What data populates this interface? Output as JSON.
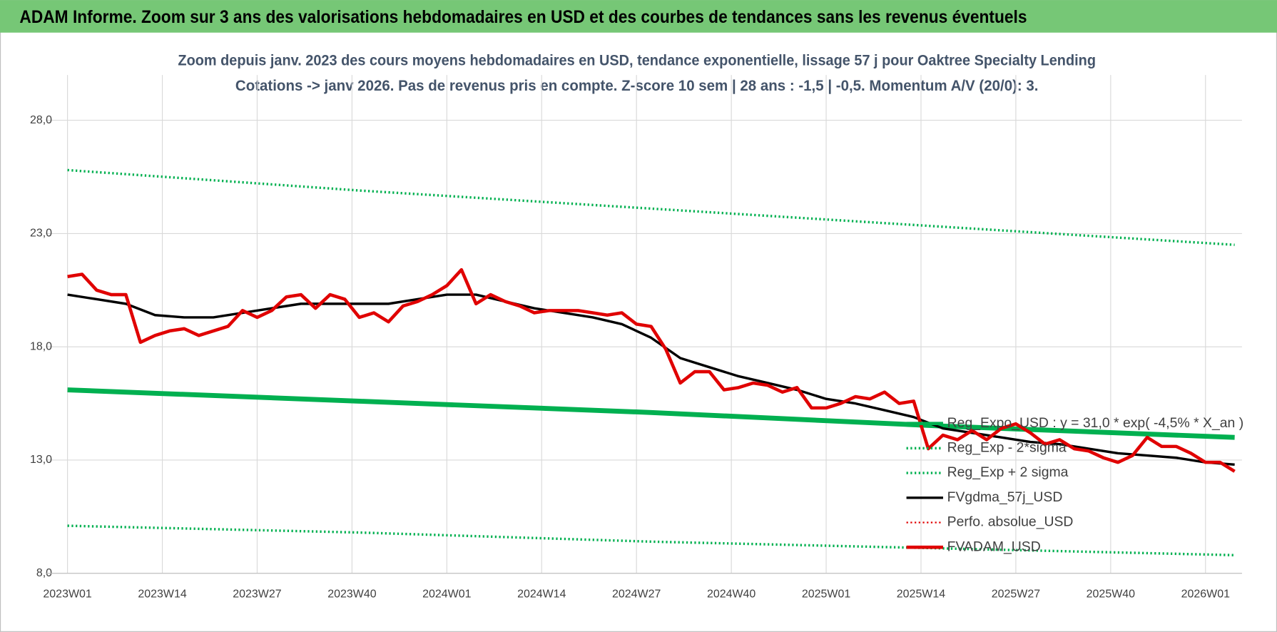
{
  "header": "ADAM Informe. Zoom sur 3 ans des valorisations hebdomadaires en USD et des courbes de tendances sans les revenus éventuels",
  "chart_data": {
    "type": "line",
    "title": "Zoom depuis janv. 2023 des cours moyens hebdomadaires en USD, tendance exponentielle, lissage 57 j pour Oaktree Specialty Lending",
    "subtitle": "Cotations -> janv 2026. Pas de revenus pris en compte. Z-score 10 sem | 28 ans : -1,5 | -0,5. Momentum A/V (20/0): 3.",
    "xlim": [
      -3,
      161
    ],
    "xticks": [
      {
        "value": 0,
        "label": "2023W01"
      },
      {
        "value": 13,
        "label": "2023W14"
      },
      {
        "value": 26,
        "label": "2023W27"
      },
      {
        "value": 39,
        "label": "2023W40"
      },
      {
        "value": 52,
        "label": "2024W01"
      },
      {
        "value": 65,
        "label": "2024W14"
      },
      {
        "value": 78,
        "label": "2024W27"
      },
      {
        "value": 91,
        "label": "2024W40"
      },
      {
        "value": 104,
        "label": "2025W01"
      },
      {
        "value": 117,
        "label": "2025W14"
      },
      {
        "value": 130,
        "label": "2025W27"
      },
      {
        "value": 143,
        "label": "2025W40"
      },
      {
        "value": 156,
        "label": "2026W01"
      }
    ],
    "ylim": [
      8,
      30
    ],
    "yticks": [
      {
        "value": 8,
        "label": "8,0"
      },
      {
        "value": 13,
        "label": "13,0"
      },
      {
        "value": 18,
        "label": "18,0"
      },
      {
        "value": 23,
        "label": "23,0"
      },
      {
        "value": 28,
        "label": "28,0"
      }
    ],
    "grid": true,
    "legend": "bottom-right",
    "series": [
      {
        "name": "Reg_Expo_USD : y = 31,0 * exp( -4,5% * X_an )",
        "color": "#00b050",
        "style": "solid",
        "width": 6,
        "x": [
          0,
          40,
          80,
          120,
          160
        ],
        "values": [
          16.1,
          15.6,
          15.1,
          14.5,
          14.0
        ]
      },
      {
        "name": "Reg_Exp - 2*sigma",
        "color": "#00b050",
        "style": "dotted",
        "width": 3,
        "x": [
          0,
          40,
          80,
          120,
          160
        ],
        "values": [
          10.1,
          9.8,
          9.4,
          9.1,
          8.8
        ]
      },
      {
        "name": "Reg_Exp + 2 sigma",
        "color": "#00b050",
        "style": "dotted",
        "width": 3,
        "x": [
          0,
          40,
          80,
          120,
          160
        ],
        "values": [
          25.8,
          24.9,
          24.1,
          23.3,
          22.5
        ]
      },
      {
        "name": "FVgdma_57j_USD",
        "color": "#000000",
        "style": "solid",
        "width": 3,
        "x": [
          0,
          4,
          8,
          12,
          16,
          20,
          24,
          28,
          32,
          36,
          40,
          44,
          48,
          52,
          56,
          60,
          64,
          68,
          72,
          76,
          80,
          84,
          88,
          92,
          96,
          100,
          104,
          108,
          112,
          116,
          120,
          124,
          128,
          132,
          136,
          140,
          144,
          148,
          152,
          156,
          160
        ],
        "values": [
          20.3,
          20.1,
          19.9,
          19.4,
          19.3,
          19.3,
          19.5,
          19.7,
          19.9,
          19.9,
          19.9,
          19.9,
          20.1,
          20.3,
          20.3,
          20.0,
          19.7,
          19.5,
          19.3,
          19.0,
          18.4,
          17.5,
          17.1,
          16.7,
          16.4,
          16.1,
          15.7,
          15.5,
          15.2,
          14.9,
          14.4,
          14.2,
          14.0,
          13.8,
          13.7,
          13.5,
          13.3,
          13.2,
          13.1,
          12.9,
          12.8
        ]
      },
      {
        "name": "Perfo. absolue_USD",
        "color": "#e00000",
        "style": "dotted",
        "width": 2,
        "x": [],
        "values": []
      },
      {
        "name": "FVADAM_USD",
        "color": "#e00000",
        "style": "solid",
        "width": 4,
        "x": [
          0,
          2,
          4,
          6,
          8,
          10,
          12,
          14,
          16,
          18,
          20,
          22,
          24,
          26,
          28,
          30,
          32,
          34,
          36,
          38,
          40,
          42,
          44,
          46,
          48,
          50,
          52,
          54,
          56,
          58,
          60,
          62,
          64,
          66,
          68,
          70,
          72,
          74,
          76,
          78,
          80,
          82,
          84,
          86,
          88,
          90,
          92,
          94,
          96,
          98,
          100,
          102,
          104,
          106,
          108,
          110,
          112,
          114,
          116,
          118,
          120,
          122,
          124,
          126,
          128,
          130,
          132,
          134,
          136,
          138,
          140,
          142,
          144,
          146,
          148,
          150,
          152,
          154,
          156,
          158,
          160
        ],
        "values": [
          21.1,
          21.2,
          20.5,
          20.3,
          20.3,
          18.2,
          18.5,
          18.7,
          18.8,
          18.5,
          18.7,
          18.9,
          19.6,
          19.3,
          19.6,
          20.2,
          20.3,
          19.7,
          20.3,
          20.1,
          19.3,
          19.5,
          19.1,
          19.8,
          20.0,
          20.3,
          20.7,
          21.4,
          19.9,
          20.3,
          20.0,
          19.8,
          19.5,
          19.6,
          19.6,
          19.6,
          19.5,
          19.4,
          19.5,
          19.0,
          18.9,
          17.9,
          16.4,
          16.9,
          16.9,
          16.1,
          16.2,
          16.4,
          16.3,
          16.0,
          16.2,
          15.3,
          15.3,
          15.5,
          15.8,
          15.7,
          16.0,
          15.5,
          15.6,
          13.5,
          14.1,
          13.9,
          14.3,
          13.9,
          14.4,
          14.6,
          14.2,
          13.7,
          13.9,
          13.5,
          13.4,
          13.1,
          12.9,
          13.2,
          14.0,
          13.6,
          13.6,
          13.3,
          12.9,
          12.9,
          12.5
        ]
      }
    ]
  }
}
